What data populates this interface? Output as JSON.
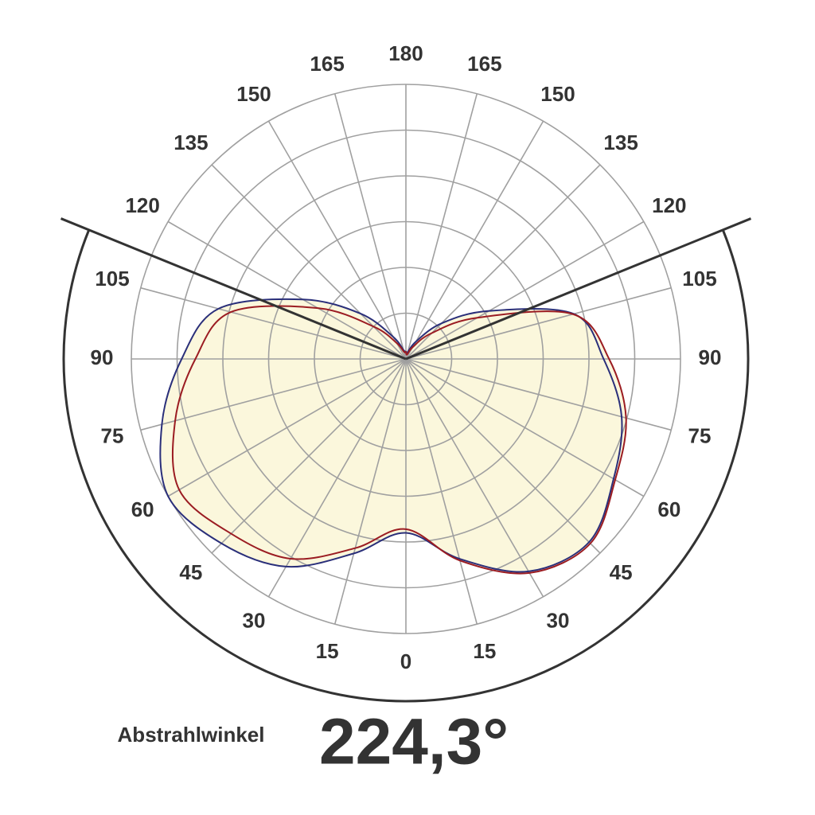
{
  "chart_data": {
    "type": "polar",
    "theta": [
      -180,
      -165,
      -150,
      -135,
      -120,
      -105,
      -90,
      -75,
      -60,
      -45,
      -30,
      -15,
      0,
      15,
      30,
      45,
      60,
      75,
      90,
      105,
      120,
      135,
      150,
      165,
      180
    ],
    "series": [
      {
        "color": "#2a2f7a",
        "values": [
          8,
          10,
          28,
          70,
          130,
          212,
          245,
          276,
          300,
          285,
          262,
          220,
          190,
          226,
          268,
          283,
          262,
          244,
          216,
          190,
          105,
          55,
          22,
          8,
          8
        ]
      },
      {
        "color": "#9b1c22",
        "values": [
          8,
          8,
          20,
          50,
          111,
          198,
          230,
          261,
          286,
          270,
          252,
          214,
          186,
          228,
          270,
          285,
          264,
          249,
          222,
          189,
          90,
          40,
          15,
          5,
          8
        ]
      }
    ],
    "fill": "#fbf7dc",
    "rlim": [
      0,
      300
    ],
    "rticks": [
      50,
      100,
      150,
      200,
      250,
      300
    ],
    "angle_ticks_right": [
      0,
      15,
      30,
      45,
      60,
      75,
      90,
      105,
      120,
      135,
      150,
      165,
      180
    ],
    "angle_ticks_left": [
      15,
      30,
      45,
      60,
      75,
      90,
      105,
      120,
      135,
      150,
      165
    ],
    "beam_angle_title": "Abstrahlwinkel",
    "beam_angle": {
      "value": 224.3,
      "label": "224,3°"
    }
  }
}
